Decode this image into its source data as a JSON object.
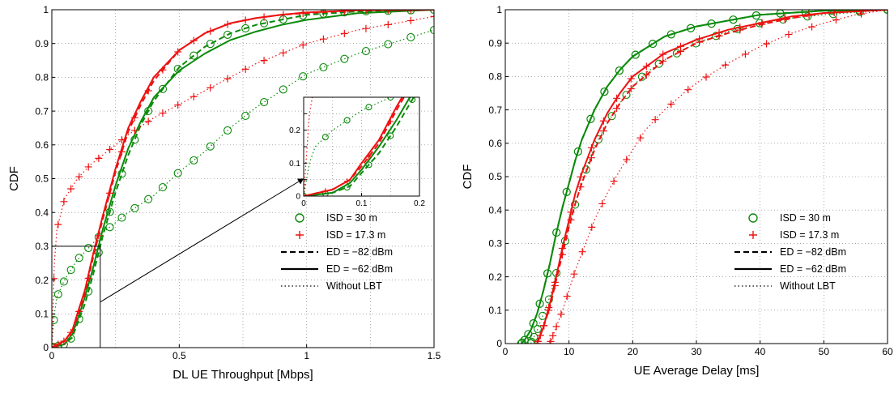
{
  "chart_data": [
    {
      "type": "line",
      "xlabel": "DL UE Throughput [Mbps]",
      "ylabel": "CDF",
      "xlim": [
        0,
        1.5
      ],
      "ylim": [
        0,
        1
      ],
      "xticks": [
        "0",
        "0.5",
        "1",
        "1.5"
      ],
      "yticks": [
        "0",
        "0.1",
        "0.2",
        "0.3",
        "0.4",
        "0.5",
        "0.6",
        "0.7",
        "0.8",
        "0.9",
        "1"
      ],
      "grid": true,
      "legend_position": "lower-right",
      "legend": [
        {
          "label": "ISD =  30 m",
          "marker": "circle",
          "color": "#0a8a0a"
        },
        {
          "label": "ISD =  17.3 m",
          "marker": "plus",
          "color": "#ee1111"
        },
        {
          "label": "ED = −82 dBm",
          "line": "dashed",
          "color": "#000000"
        },
        {
          "label": "ED = −62 dBm",
          "line": "solid",
          "color": "#000000"
        },
        {
          "label": "Without LBT",
          "line": "dotted",
          "color": "#000000"
        }
      ],
      "series": [
        {
          "isd": "30 m",
          "ed": "-82 dBm",
          "color": "#0a8a0a",
          "line": "dashed",
          "marker": "circle",
          "x": [
            0,
            0.05,
            0.08,
            0.1,
            0.13,
            0.16,
            0.2,
            0.25,
            0.3,
            0.35,
            0.4,
            0.5,
            0.6,
            0.7,
            0.8,
            0.9,
            1.0,
            1.2,
            1.5
          ],
          "y": [
            0,
            0.01,
            0.03,
            0.07,
            0.13,
            0.21,
            0.33,
            0.46,
            0.57,
            0.66,
            0.73,
            0.83,
            0.89,
            0.93,
            0.955,
            0.97,
            0.985,
            0.995,
            1.0
          ]
        },
        {
          "isd": "30 m",
          "ed": "-62 dBm",
          "color": "#0a8a0a",
          "line": "solid",
          "marker": "none",
          "x": [
            0,
            0.05,
            0.08,
            0.1,
            0.13,
            0.16,
            0.2,
            0.25,
            0.3,
            0.35,
            0.4,
            0.5,
            0.6,
            0.7,
            0.8,
            0.9,
            1.0,
            1.2,
            1.5
          ],
          "y": [
            0,
            0.01,
            0.04,
            0.08,
            0.15,
            0.23,
            0.35,
            0.48,
            0.59,
            0.67,
            0.74,
            0.82,
            0.87,
            0.91,
            0.935,
            0.955,
            0.97,
            0.99,
            1.0
          ]
        },
        {
          "isd": "30 m",
          "ed": "none",
          "color": "#0a8a0a",
          "line": "dotted",
          "marker": "circle",
          "x": [
            0,
            0.01,
            0.02,
            0.05,
            0.1,
            0.15,
            0.2,
            0.3,
            0.4,
            0.5,
            0.6,
            0.7,
            0.8,
            0.9,
            1.0,
            1.2,
            1.5
          ],
          "y": [
            0,
            0.1,
            0.15,
            0.2,
            0.26,
            0.3,
            0.34,
            0.4,
            0.45,
            0.52,
            0.58,
            0.65,
            0.71,
            0.76,
            0.81,
            0.87,
            0.94
          ]
        },
        {
          "isd": "17.3 m",
          "ed": "-82 dBm",
          "color": "#ee1111",
          "line": "dashed",
          "marker": "plus",
          "x": [
            0,
            0.05,
            0.08,
            0.1,
            0.13,
            0.16,
            0.2,
            0.25,
            0.3,
            0.35,
            0.4,
            0.5,
            0.6,
            0.7,
            0.8,
            0.9,
            1.0,
            1.2,
            1.5
          ],
          "y": [
            0,
            0.02,
            0.05,
            0.09,
            0.16,
            0.26,
            0.38,
            0.52,
            0.64,
            0.72,
            0.79,
            0.88,
            0.93,
            0.96,
            0.975,
            0.985,
            0.99,
            0.998,
            1.0
          ]
        },
        {
          "isd": "17.3 m",
          "ed": "-62 dBm",
          "color": "#ee1111",
          "line": "solid",
          "marker": "none",
          "x": [
            0,
            0.05,
            0.08,
            0.1,
            0.13,
            0.16,
            0.2,
            0.25,
            0.3,
            0.35,
            0.4,
            0.5,
            0.6,
            0.7,
            0.8,
            0.9,
            1.0,
            1.2,
            1.5
          ],
          "y": [
            0,
            0.02,
            0.05,
            0.1,
            0.17,
            0.27,
            0.39,
            0.53,
            0.65,
            0.73,
            0.8,
            0.88,
            0.93,
            0.96,
            0.975,
            0.985,
            0.992,
            0.998,
            1.0
          ]
        },
        {
          "isd": "17.3 m",
          "ed": "none",
          "color": "#ee1111",
          "line": "dotted",
          "marker": "plus",
          "x": [
            0,
            0.01,
            0.02,
            0.05,
            0.1,
            0.15,
            0.2,
            0.3,
            0.4,
            0.5,
            0.6,
            0.7,
            0.8,
            0.9,
            1.0,
            1.1,
            1.2,
            1.35,
            1.5
          ],
          "y": [
            0,
            0.25,
            0.35,
            0.44,
            0.5,
            0.54,
            0.57,
            0.63,
            0.68,
            0.72,
            0.76,
            0.8,
            0.84,
            0.87,
            0.9,
            0.92,
            0.94,
            0.96,
            0.98
          ]
        }
      ],
      "inset": {
        "xlim": [
          0,
          0.2
        ],
        "ylim": [
          0,
          0.3
        ],
        "xticks": [
          "0",
          "0.1",
          "0.2"
        ],
        "yticks": [
          "0",
          "0.1",
          "0.2"
        ]
      }
    },
    {
      "type": "line",
      "xlabel": "UE Average Delay [ms]",
      "ylabel": "CDF",
      "xlim": [
        0,
        60
      ],
      "ylim": [
        0,
        1
      ],
      "xticks": [
        "0",
        "10",
        "20",
        "30",
        "40",
        "50",
        "60"
      ],
      "yticks": [
        "0",
        "0.1",
        "0.2",
        "0.3",
        "0.4",
        "0.5",
        "0.6",
        "0.7",
        "0.8",
        "0.9",
        "1"
      ],
      "grid": true,
      "legend_position": "lower-right",
      "legend": [
        {
          "label": "ISD = 30 m",
          "marker": "circle",
          "color": "#0a8a0a"
        },
        {
          "label": "ISD = 17.3 m",
          "marker": "plus",
          "color": "#ee1111"
        },
        {
          "label": "ED = −82 dBm",
          "line": "dashed",
          "color": "#000000"
        },
        {
          "label": "ED = −62 dBm",
          "line": "solid",
          "color": "#000000"
        },
        {
          "label": "Without LBT",
          "line": "dotted",
          "color": "#000000"
        }
      ],
      "series": [
        {
          "isd": "30 m",
          "ed": "-82 dBm",
          "color": "#0a8a0a",
          "line": "dashed",
          "marker": "circle",
          "x": [
            2.5,
            3,
            4,
            5,
            6,
            7,
            8,
            9,
            10,
            11,
            12,
            14,
            16,
            18,
            20,
            25,
            30,
            40,
            50,
            60
          ],
          "y": [
            0,
            0.01,
            0.04,
            0.09,
            0.16,
            0.24,
            0.33,
            0.41,
            0.48,
            0.55,
            0.61,
            0.7,
            0.77,
            0.82,
            0.86,
            0.92,
            0.95,
            0.985,
            0.997,
            1.0
          ]
        },
        {
          "isd": "30 m",
          "ed": "-62 dBm",
          "color": "#0a8a0a",
          "line": "solid",
          "marker": "circle",
          "x": [
            2.5,
            3,
            4,
            5,
            6,
            7,
            8,
            9,
            10,
            11,
            12,
            14,
            16,
            18,
            20,
            25,
            30,
            40,
            50,
            60
          ],
          "y": [
            0,
            0.01,
            0.04,
            0.09,
            0.16,
            0.24,
            0.33,
            0.41,
            0.48,
            0.55,
            0.61,
            0.7,
            0.77,
            0.82,
            0.86,
            0.92,
            0.95,
            0.985,
            0.997,
            1.0
          ]
        },
        {
          "isd": "30 m",
          "ed": "none",
          "color": "#0a8a0a",
          "line": "dotted",
          "marker": "circle",
          "x": [
            4,
            5,
            6,
            7,
            8,
            9,
            10,
            11,
            12,
            13,
            14,
            16,
            18,
            20,
            22,
            25,
            28,
            30,
            35,
            40,
            45,
            50,
            60
          ],
          "y": [
            0,
            0.04,
            0.09,
            0.14,
            0.21,
            0.28,
            0.35,
            0.42,
            0.48,
            0.54,
            0.59,
            0.66,
            0.72,
            0.77,
            0.81,
            0.85,
            0.88,
            0.9,
            0.935,
            0.96,
            0.975,
            0.985,
            1.0
          ]
        },
        {
          "isd": "17.3 m",
          "ed": "-82 dBm",
          "color": "#ee1111",
          "line": "dashed",
          "marker": "plus",
          "x": [
            5,
            6,
            7,
            8,
            9,
            10,
            11,
            12,
            14,
            16,
            18,
            20,
            25,
            30,
            35,
            40,
            45,
            50,
            60
          ],
          "y": [
            0,
            0.05,
            0.11,
            0.19,
            0.27,
            0.35,
            0.42,
            0.48,
            0.58,
            0.66,
            0.72,
            0.77,
            0.85,
            0.9,
            0.93,
            0.955,
            0.975,
            0.99,
            1.0
          ]
        },
        {
          "isd": "17.3 m",
          "ed": "-62 dBm",
          "color": "#ee1111",
          "line": "solid",
          "marker": "plus",
          "x": [
            5,
            6,
            7,
            8,
            9,
            10,
            11,
            12,
            14,
            16,
            18,
            20,
            25,
            30,
            35,
            40,
            45,
            50,
            60
          ],
          "y": [
            0,
            0.05,
            0.12,
            0.2,
            0.29,
            0.37,
            0.45,
            0.51,
            0.61,
            0.69,
            0.75,
            0.8,
            0.87,
            0.91,
            0.94,
            0.96,
            0.98,
            0.99,
            1.0
          ]
        },
        {
          "isd": "17.3 m",
          "ed": "none",
          "color": "#ee1111",
          "line": "dotted",
          "marker": "plus",
          "x": [
            7,
            8,
            9,
            10,
            11,
            12,
            13,
            14,
            16,
            18,
            20,
            22,
            25,
            28,
            30,
            35,
            40,
            45,
            50,
            55,
            60
          ],
          "y": [
            0,
            0.05,
            0.1,
            0.16,
            0.22,
            0.27,
            0.32,
            0.37,
            0.45,
            0.52,
            0.58,
            0.64,
            0.7,
            0.75,
            0.78,
            0.84,
            0.89,
            0.93,
            0.96,
            0.985,
            1.0
          ]
        }
      ]
    }
  ]
}
